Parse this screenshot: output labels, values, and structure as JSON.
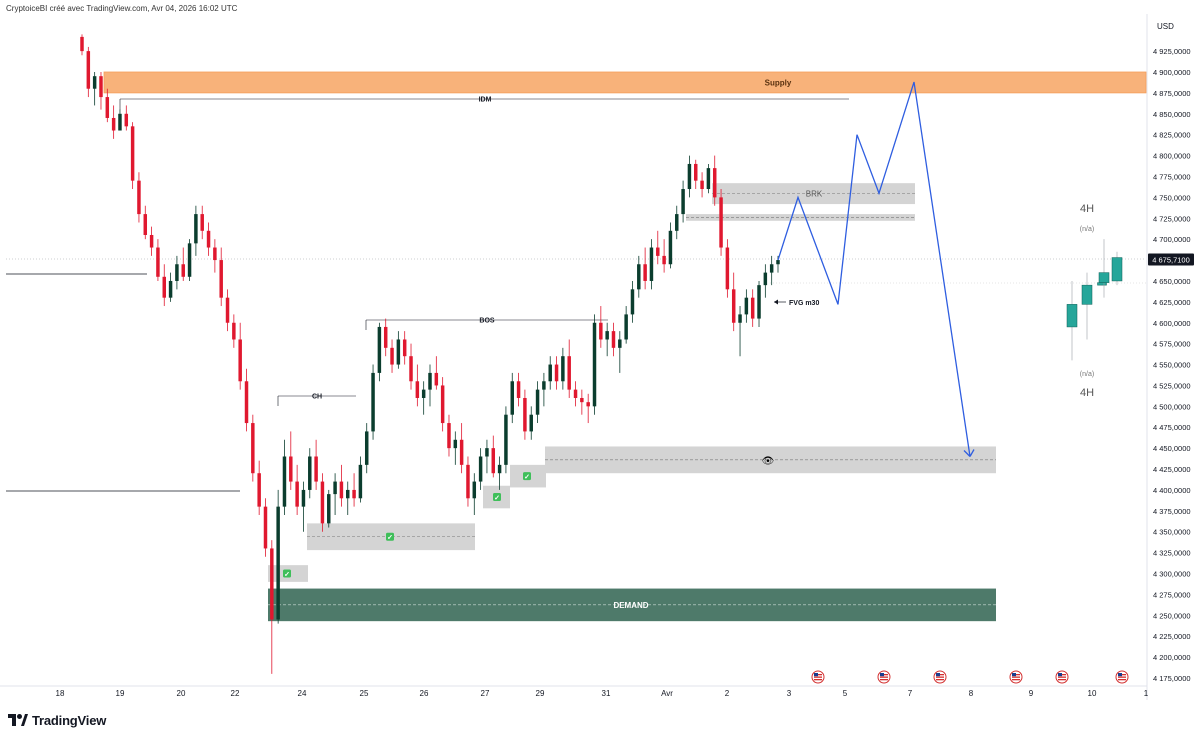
{
  "header": {
    "credit": "CryptoiceBI créé avec TradingView.com, Avr 04, 2026 16:02 UTC"
  },
  "footer": {
    "brand": "TradingView"
  },
  "chart_data": {
    "type": "candlestick",
    "currency": "USD",
    "price_axis": {
      "ticks": [
        "4 925,0000",
        "4 900,0000",
        "4 875,0000",
        "4 850,0000",
        "4 825,0000",
        "4 800,0000",
        "4 775,0000",
        "4 750,0000",
        "4 725,0000",
        "4 700,0000",
        "4 675,0000",
        "4 650,0000",
        "4 625,0000",
        "4 600,0000",
        "4 575,0000",
        "4 550,0000",
        "4 525,0000",
        "4 500,0000",
        "4 475,0000",
        "4 450,0000",
        "4 425,0000",
        "4 400,0000",
        "4 375,0000",
        "4 350,0000",
        "4 325,0000",
        "4 300,0000",
        "4 275,0000",
        "4 250,0000",
        "4 225,0000",
        "4 200,0000",
        "4 175,0000"
      ],
      "range": [
        4170,
        4945
      ]
    },
    "current_price": {
      "label": "4 675,7100",
      "value": 4675.71
    },
    "time_axis": {
      "labels": [
        "18",
        "19",
        "20",
        "22",
        "24",
        "25",
        "26",
        "27",
        "29",
        "31",
        "Avr",
        "2",
        "3",
        "5",
        "7",
        "8",
        "9",
        "10",
        "1"
      ]
    },
    "candles": [
      [
        4942,
        4945,
        4920,
        4925
      ],
      [
        4925,
        4930,
        4870,
        4880
      ],
      [
        4880,
        4900,
        4860,
        4895
      ],
      [
        4895,
        4900,
        4855,
        4870
      ],
      [
        4870,
        4880,
        4840,
        4845
      ],
      [
        4845,
        4860,
        4820,
        4830
      ],
      [
        4830,
        4855,
        4830,
        4850
      ],
      [
        4850,
        4860,
        4830,
        4835
      ],
      [
        4835,
        4840,
        4760,
        4770
      ],
      [
        4770,
        4780,
        4720,
        4730
      ],
      [
        4730,
        4740,
        4700,
        4705
      ],
      [
        4705,
        4715,
        4680,
        4690
      ],
      [
        4690,
        4700,
        4650,
        4655
      ],
      [
        4655,
        4670,
        4620,
        4630
      ],
      [
        4630,
        4660,
        4625,
        4650
      ],
      [
        4650,
        4680,
        4640,
        4670
      ],
      [
        4670,
        4690,
        4650,
        4655
      ],
      [
        4655,
        4700,
        4650,
        4695
      ],
      [
        4695,
        4740,
        4680,
        4730
      ],
      [
        4730,
        4740,
        4700,
        4710
      ],
      [
        4710,
        4720,
        4680,
        4690
      ],
      [
        4690,
        4700,
        4660,
        4675
      ],
      [
        4675,
        4690,
        4620,
        4630
      ],
      [
        4630,
        4640,
        4590,
        4600
      ],
      [
        4600,
        4610,
        4570,
        4580
      ],
      [
        4580,
        4600,
        4520,
        4530
      ],
      [
        4530,
        4545,
        4470,
        4480
      ],
      [
        4480,
        4490,
        4410,
        4420
      ],
      [
        4420,
        4435,
        4370,
        4380
      ],
      [
        4380,
        4390,
        4320,
        4330
      ],
      [
        4330,
        4340,
        4180,
        4245
      ],
      [
        4245,
        4400,
        4240,
        4380
      ],
      [
        4380,
        4460,
        4370,
        4440
      ],
      [
        4440,
        4470,
        4400,
        4410
      ],
      [
        4410,
        4430,
        4370,
        4380
      ],
      [
        4380,
        4410,
        4350,
        4400
      ],
      [
        4400,
        4450,
        4390,
        4440
      ],
      [
        4440,
        4460,
        4400,
        4410
      ],
      [
        4410,
        4420,
        4350,
        4360
      ],
      [
        4360,
        4400,
        4355,
        4395
      ],
      [
        4395,
        4420,
        4370,
        4410
      ],
      [
        4410,
        4430,
        4380,
        4390
      ],
      [
        4390,
        4410,
        4370,
        4400
      ],
      [
        4400,
        4420,
        4380,
        4390
      ],
      [
        4390,
        4440,
        4385,
        4430
      ],
      [
        4430,
        4480,
        4420,
        4470
      ],
      [
        4470,
        4550,
        4460,
        4540
      ],
      [
        4540,
        4600,
        4530,
        4595
      ],
      [
        4595,
        4605,
        4560,
        4570
      ],
      [
        4570,
        4580,
        4540,
        4550
      ],
      [
        4550,
        4590,
        4545,
        4580
      ],
      [
        4580,
        4590,
        4550,
        4560
      ],
      [
        4560,
        4575,
        4520,
        4530
      ],
      [
        4530,
        4550,
        4500,
        4510
      ],
      [
        4510,
        4530,
        4490,
        4520
      ],
      [
        4520,
        4550,
        4500,
        4540
      ],
      [
        4540,
        4560,
        4520,
        4525
      ],
      [
        4525,
        4535,
        4470,
        4480
      ],
      [
        4480,
        4490,
        4440,
        4450
      ],
      [
        4450,
        4470,
        4430,
        4460
      ],
      [
        4460,
        4480,
        4420,
        4430
      ],
      [
        4430,
        4440,
        4380,
        4390
      ],
      [
        4390,
        4420,
        4370,
        4410
      ],
      [
        4410,
        4450,
        4400,
        4440
      ],
      [
        4440,
        4460,
        4420,
        4450
      ],
      [
        4450,
        4465,
        4415,
        4420
      ],
      [
        4420,
        4440,
        4400,
        4430
      ],
      [
        4430,
        4500,
        4420,
        4490
      ],
      [
        4490,
        4540,
        4480,
        4530
      ],
      [
        4530,
        4540,
        4500,
        4510
      ],
      [
        4510,
        4520,
        4460,
        4470
      ],
      [
        4470,
        4500,
        4460,
        4490
      ],
      [
        4490,
        4530,
        4480,
        4520
      ],
      [
        4520,
        4540,
        4500,
        4530
      ],
      [
        4530,
        4560,
        4520,
        4550
      ],
      [
        4550,
        4560,
        4520,
        4530
      ],
      [
        4530,
        4570,
        4520,
        4560
      ],
      [
        4560,
        4580,
        4510,
        4520
      ],
      [
        4520,
        4530,
        4500,
        4510
      ],
      [
        4510,
        4520,
        4490,
        4505
      ],
      [
        4505,
        4515,
        4480,
        4500
      ],
      [
        4500,
        4610,
        4490,
        4600
      ],
      [
        4600,
        4620,
        4570,
        4580
      ],
      [
        4580,
        4600,
        4560,
        4590
      ],
      [
        4590,
        4600,
        4560,
        4570
      ],
      [
        4570,
        4590,
        4540,
        4580
      ],
      [
        4580,
        4620,
        4575,
        4610
      ],
      [
        4610,
        4650,
        4600,
        4640
      ],
      [
        4640,
        4680,
        4630,
        4670
      ],
      [
        4670,
        4690,
        4640,
        4650
      ],
      [
        4650,
        4700,
        4640,
        4690
      ],
      [
        4690,
        4710,
        4670,
        4680
      ],
      [
        4680,
        4700,
        4660,
        4670
      ],
      [
        4670,
        4720,
        4665,
        4710
      ],
      [
        4710,
        4740,
        4700,
        4730
      ],
      [
        4730,
        4770,
        4720,
        4760
      ],
      [
        4760,
        4800,
        4750,
        4790
      ],
      [
        4790,
        4795,
        4760,
        4770
      ],
      [
        4770,
        4780,
        4750,
        4760
      ],
      [
        4760,
        4790,
        4755,
        4785
      ],
      [
        4785,
        4800,
        4740,
        4750
      ],
      [
        4750,
        4760,
        4680,
        4690
      ],
      [
        4690,
        4700,
        4630,
        4640
      ],
      [
        4640,
        4660,
        4590,
        4600
      ],
      [
        4600,
        4620,
        4560,
        4610
      ],
      [
        4610,
        4640,
        4600,
        4630
      ],
      [
        4630,
        4640,
        4595,
        4605
      ],
      [
        4605,
        4650,
        4595,
        4645
      ],
      [
        4645,
        4670,
        4630,
        4660
      ],
      [
        4660,
        4680,
        4645,
        4670
      ],
      [
        4670,
        4680,
        4660,
        4675
      ]
    ],
    "mini_candles": [
      [
        4595,
        4650,
        4555,
        4622
      ],
      [
        4622,
        4660,
        4580,
        4645
      ],
      [
        4645,
        4650,
        4645,
        4648
      ],
      [
        4648,
        4700,
        4630,
        4660
      ],
      [
        4650,
        4685,
        4645,
        4678
      ]
    ],
    "zones": {
      "supply": {
        "label": "Supply",
        "from": 4875,
        "to": 4900
      },
      "demand": {
        "label": "DEMAND",
        "from": 4243,
        "to": 4282
      },
      "brk": {
        "label": "BRK",
        "from": 4742,
        "to": 4767
      },
      "brk_thin": {
        "from": 4722,
        "to": 4730
      },
      "eye_zone": {
        "from": 4420,
        "to": 4452,
        "icon": "👁"
      }
    },
    "labels": {
      "idm": "IDM",
      "bos": "BOS",
      "ch": "CH",
      "fvg": "FVG m30",
      "timeframe_top": "4H",
      "na_top": "(n/a)",
      "na_bottom": "(n/a)",
      "timeframe_bottom": "4H",
      "check": "✓"
    },
    "projection": [
      [
        4675,
        0
      ],
      [
        4750,
        1
      ],
      [
        4622,
        2
      ],
      [
        4825,
        3
      ],
      [
        4755,
        4
      ],
      [
        4888,
        5
      ],
      [
        4440,
        6
      ]
    ],
    "colors": {
      "up": "#0b3d2e",
      "down": "#e0182f",
      "supply": "#f8b27a",
      "demand": "#4e7a6a",
      "zone_gray": "#d4d4d4",
      "projection": "#2f5ee0",
      "mini_up": "#26a69a"
    },
    "event_icon": "us-flag-icon"
  }
}
